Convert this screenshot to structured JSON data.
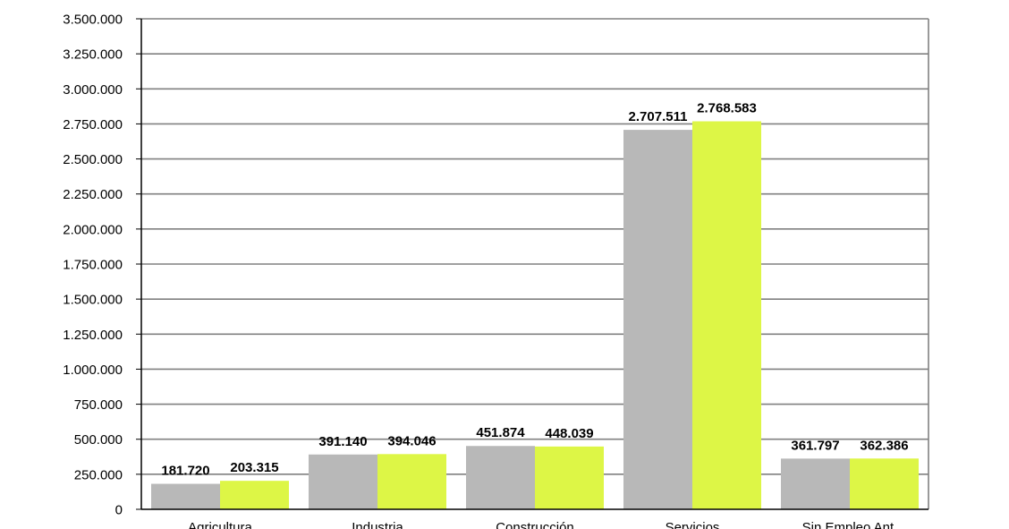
{
  "chart_data": {
    "type": "bar",
    "categories": [
      "Agricultura",
      "Industria",
      "Construcción",
      "Servicios",
      "Sin Empleo Ant."
    ],
    "series": [
      {
        "values": [
          181720,
          391140,
          451874,
          2707511,
          361797
        ],
        "color": "#b8b8b8"
      },
      {
        "values": [
          203315,
          394046,
          448039,
          2768583,
          362386
        ],
        "color": "#ddf646"
      }
    ],
    "data_labels": [
      [
        "181.720",
        "391.140",
        "451.874",
        "2.707.511",
        "361.797"
      ],
      [
        "203.315",
        "394.046",
        "448.039",
        "2.768.583",
        "362.386"
      ]
    ],
    "yticks": [
      "0",
      "250.000",
      "500.000",
      "750.000",
      "1.000.000",
      "1.250.000",
      "1.500.000",
      "1.750.000",
      "2.000.000",
      "2.250.000",
      "2.500.000",
      "2.750.000",
      "3.000.000",
      "3.250.000",
      "3.500.000"
    ],
    "ylim": [
      0,
      3500000
    ],
    "grid": true,
    "grid_color": "#808080",
    "title": "",
    "xlabel": "",
    "ylabel": ""
  }
}
